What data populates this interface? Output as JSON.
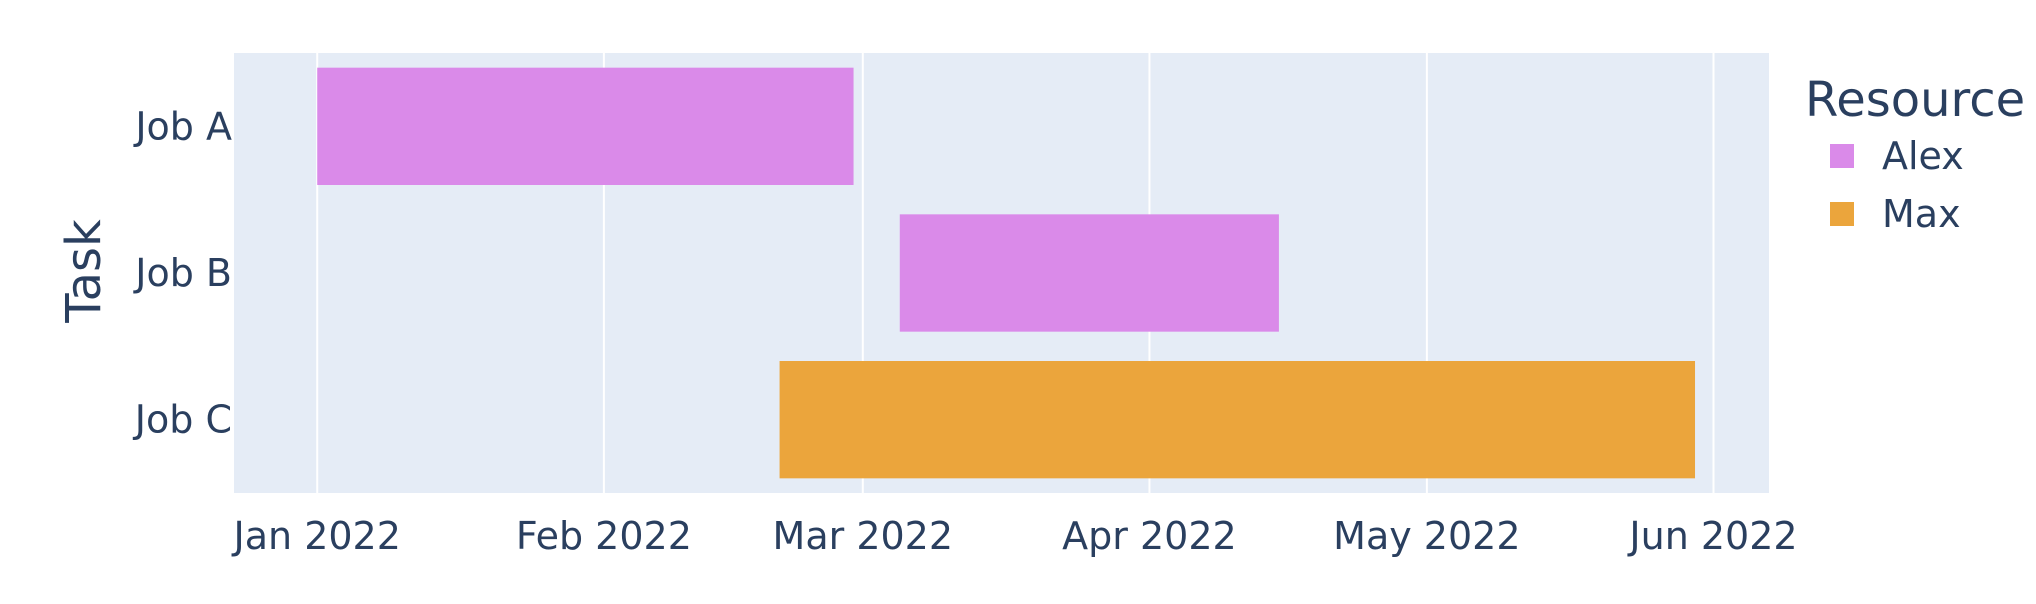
{
  "chart_data": {
    "type": "bar",
    "orientation": "horizontal",
    "ylabel": "Task",
    "legend": {
      "title": "Resource",
      "position": "right"
    },
    "categories": [
      "Job A",
      "Job B",
      "Job C"
    ],
    "x_ticks": [
      "2022-01-01",
      "2022-02-01",
      "2022-03-01",
      "2022-04-01",
      "2022-05-01",
      "2022-06-01"
    ],
    "x_tick_labels": [
      "Jan 2022",
      "Feb 2022",
      "Mar 2022",
      "Apr 2022",
      "May 2022",
      "Jun 2022"
    ],
    "xlim": [
      "2021-12-23",
      "2022-06-07"
    ],
    "grid": true,
    "series": [
      {
        "name": "Alex",
        "color": "#da8ae9",
        "tasks": [
          {
            "task": "Job A",
            "start": "2022-01-01",
            "finish": "2022-02-28"
          },
          {
            "task": "Job B",
            "start": "2022-03-05",
            "finish": "2022-04-15"
          }
        ]
      },
      {
        "name": "Max",
        "color": "#eba53c",
        "tasks": [
          {
            "task": "Job C",
            "start": "2022-02-20",
            "finish": "2022-05-30"
          }
        ]
      }
    ],
    "colors": {
      "plot_bg": "#e5ecf6",
      "grid": "#ffffff",
      "text": "#2a3f5f"
    }
  }
}
